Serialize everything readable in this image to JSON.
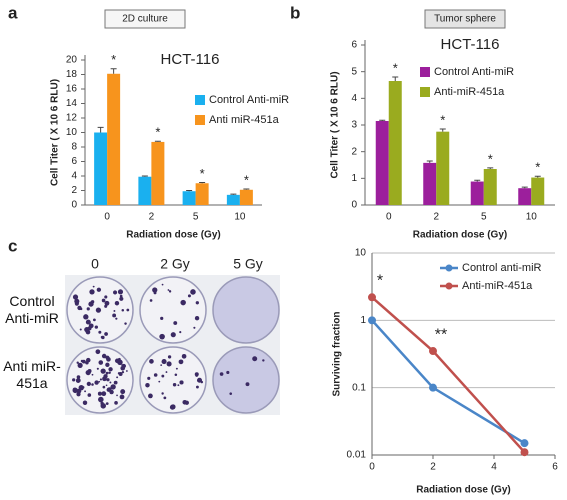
{
  "panels": [
    "a",
    "b",
    "c"
  ],
  "colony_assay": {
    "columns": [
      "0",
      "2 Gy",
      "5 Gy"
    ],
    "rows": [
      "Control Anti-miR",
      "Anti miR-451a"
    ]
  },
  "chart_data": [
    {
      "type": "bar",
      "title": "2D culture",
      "subtitle": "HCT-116",
      "y_label": "Cell Titer ( X 10 6 RLU)",
      "x_label": "Radiation dose (Gy)",
      "categories": [
        "0",
        "2",
        "5",
        "10"
      ],
      "series": [
        {
          "name": "Control Anti-miR",
          "color": "#1ab0ef",
          "values": [
            10,
            3.9,
            1.9,
            1.4
          ],
          "errors": [
            0.7,
            0.1,
            0.1,
            0.1
          ]
        },
        {
          "name": "Anti miR-451a",
          "color": "#f7941d",
          "values": [
            18.1,
            8.7,
            3.0,
            2.1
          ],
          "errors": [
            0.7,
            0.1,
            0.1,
            0.1
          ],
          "significance": [
            "*",
            "*",
            "*",
            "*"
          ]
        }
      ],
      "ylim": [
        0,
        20
      ],
      "yticks": [
        0,
        2,
        4,
        6,
        8,
        10,
        12,
        14,
        16,
        18,
        20
      ]
    },
    {
      "type": "bar",
      "title": "Tumor sphere",
      "subtitle": "HCT-116",
      "y_label": "Cell Titer ( X 10 6 RLU)",
      "x_label": "Radiation dose (Gy)",
      "categories": [
        "0",
        "2",
        "5",
        "10"
      ],
      "series": [
        {
          "name": "Control Anti-miR",
          "color": "#9c1f9c",
          "values": [
            3.15,
            1.58,
            0.88,
            0.63
          ],
          "errors": [
            0.03,
            0.07,
            0.05,
            0.04
          ]
        },
        {
          "name": "Anti-miR-451a",
          "color": "#9aab1f",
          "values": [
            4.65,
            2.75,
            1.35,
            1.03
          ],
          "errors": [
            0.15,
            0.1,
            0.04,
            0.05
          ],
          "significance": [
            "*",
            "*",
            "*",
            "*"
          ]
        }
      ],
      "ylim": [
        0,
        6
      ],
      "yticks": [
        0,
        1,
        2,
        3,
        4,
        5,
        6
      ]
    },
    {
      "type": "line",
      "y_label": "Surviving fraction",
      "x_label": "Radiation dose (Gy)",
      "x": [
        0,
        2,
        5
      ],
      "series": [
        {
          "name": "Control anti-miR",
          "color": "#4a86c8",
          "values": [
            1,
            0.1,
            0.015
          ]
        },
        {
          "name": "Anti-miR-451a",
          "color": "#c0504d",
          "values": [
            2.2,
            0.35,
            0.011
          ],
          "significance": [
            "*",
            "**",
            null
          ]
        }
      ],
      "xlim": [
        0,
        6
      ],
      "xticks": [
        0,
        2,
        4,
        6
      ],
      "ylim": [
        0.01,
        10
      ],
      "yticks": [
        0.01,
        0.1,
        1,
        10
      ],
      "log_y": true,
      "grid": true
    }
  ]
}
